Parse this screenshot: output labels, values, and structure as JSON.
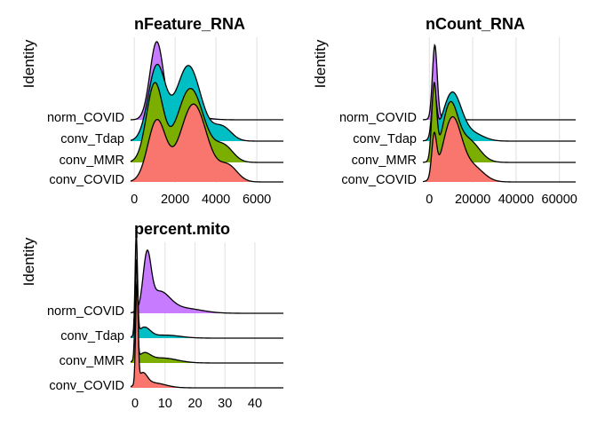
{
  "chart_data": [
    {
      "type": "ridgeline",
      "title": "nFeature_RNA",
      "ylabel": "Identity",
      "xlabel": "",
      "categories": [
        "conv_COVID",
        "conv_MMR",
        "conv_Tdap",
        "norm_COVID"
      ],
      "colors": [
        "#F8766D",
        "#7CAE00",
        "#00BFC4",
        "#C77CFF"
      ],
      "xlim": [
        -180,
        7300
      ],
      "xticks": [
        0,
        2000,
        4000,
        6000
      ],
      "tick_labels": [
        "0",
        "2000",
        "4000",
        "6000"
      ],
      "grid": true,
      "legend": "none",
      "series": [
        {
          "peaks": [
            [
              1100,
              440,
              0.78
            ],
            [
              2900,
              650,
              1.0
            ],
            [
              4600,
              450,
              0.2
            ]
          ]
        },
        {
          "peaks": [
            [
              1000,
              400,
              1.0
            ],
            [
              2750,
              650,
              0.95
            ],
            [
              4400,
              450,
              0.2
            ]
          ]
        },
        {
          "peaks": [
            [
              1100,
              420,
              0.95
            ],
            [
              2650,
              600,
              0.97
            ],
            [
              4300,
              450,
              0.18
            ]
          ]
        },
        {
          "peaks": [
            [
              1100,
              330,
              1.0
            ],
            [
              2700,
              700,
              0.05
            ]
          ]
        }
      ]
    },
    {
      "type": "ridgeline",
      "title": "nCount_RNA",
      "ylabel": "Identity",
      "xlabel": "",
      "categories": [
        "conv_COVID",
        "conv_MMR",
        "conv_Tdap",
        "norm_COVID"
      ],
      "colors": [
        "#F8766D",
        "#7CAE00",
        "#00BFC4",
        "#C77CFF"
      ],
      "xlim": [
        -3000,
        67500
      ],
      "xticks": [
        0,
        20000,
        40000,
        60000
      ],
      "tick_labels": [
        "0",
        "20000",
        "40000",
        "60000"
      ],
      "grid": true,
      "legend": "none",
      "series": [
        {
          "peaks": [
            [
              2200,
              1100,
              0.55
            ],
            [
              10500,
              4200,
              0.85
            ],
            [
              20000,
              5000,
              0.2
            ]
          ]
        },
        {
          "peaks": [
            [
              2200,
              1100,
              1.0
            ],
            [
              9500,
              3500,
              0.75
            ],
            [
              18000,
              5000,
              0.3
            ]
          ]
        },
        {
          "peaks": [
            [
              2200,
              1100,
              0.6
            ],
            [
              10500,
              4200,
              0.65
            ],
            [
              20000,
              5000,
              0.1
            ]
          ]
        },
        {
          "peaks": [
            [
              2500,
              1100,
              1.0
            ],
            [
              7000,
              4000,
              0.03
            ]
          ]
        }
      ]
    },
    {
      "type": "ridgeline",
      "title": "percent.mito",
      "ylabel": "Identity",
      "xlabel": "",
      "categories": [
        "conv_COVID",
        "conv_MMR",
        "conv_Tdap",
        "norm_COVID"
      ],
      "colors": [
        "#F8766D",
        "#7CAE00",
        "#00BFC4",
        "#C77CFF"
      ],
      "xlim": [
        -1.5,
        49.5
      ],
      "xticks": [
        0,
        10,
        20,
        30,
        40
      ],
      "tick_labels": [
        "0",
        "10",
        "20",
        "30",
        "40"
      ],
      "grid": true,
      "legend": "none",
      "series": [
        {
          "peaks": [
            [
              0.6,
              0.4,
              1.0
            ],
            [
              2.5,
              1.5,
              0.12
            ],
            [
              6,
              4,
              0.05
            ]
          ]
        },
        {
          "peaks": [
            [
              0.4,
              0.4,
              1.0
            ],
            [
              3,
              2,
              0.08
            ],
            [
              9,
              5,
              0.05
            ]
          ]
        },
        {
          "peaks": [
            [
              0.4,
              0.4,
              1.0
            ],
            [
              3,
              2,
              0.1
            ],
            [
              10,
              5,
              0.03
            ]
          ]
        },
        {
          "peaks": [
            [
              4,
              1.3,
              0.52
            ],
            [
              8,
              3.5,
              0.2
            ],
            [
              16,
              6,
              0.05
            ],
            [
              0.3,
              0.3,
              0.05
            ]
          ]
        }
      ]
    }
  ]
}
